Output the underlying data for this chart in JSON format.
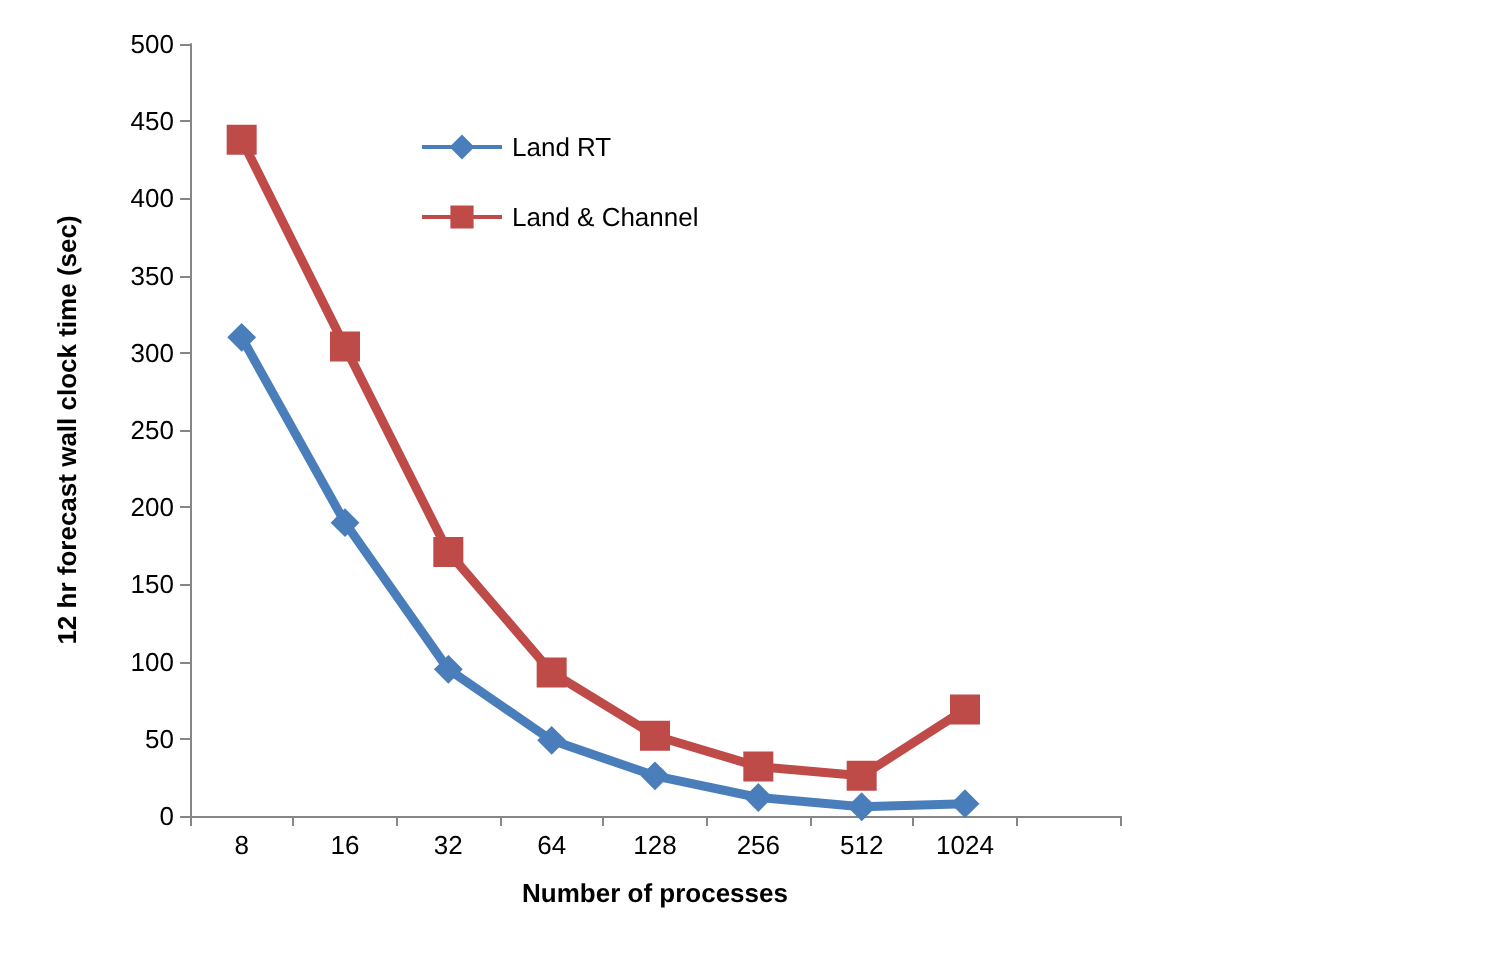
{
  "chart_data": {
    "type": "line",
    "xlabel": "Number of processes",
    "ylabel": "12 hr forecast wall clock time (sec)",
    "categories": [
      "8",
      "16",
      "32",
      "64",
      "128",
      "256",
      "512",
      "1024",
      null
    ],
    "series": [
      {
        "name": "Land RT",
        "color": "#4a7ebb",
        "marker": "diamond",
        "values": [
          310,
          190,
          95,
          49,
          26,
          12,
          6,
          8,
          null
        ]
      },
      {
        "name": "Land & Channel",
        "color": "#be4b48",
        "marker": "square",
        "values": [
          438,
          304,
          171,
          93,
          52,
          32,
          26,
          69,
          null
        ]
      }
    ],
    "ylim": [
      0,
      500
    ],
    "yticks": [
      0,
      50,
      100,
      150,
      200,
      250,
      300,
      350,
      400,
      450,
      500
    ],
    "grid": false,
    "legend": "top left"
  }
}
